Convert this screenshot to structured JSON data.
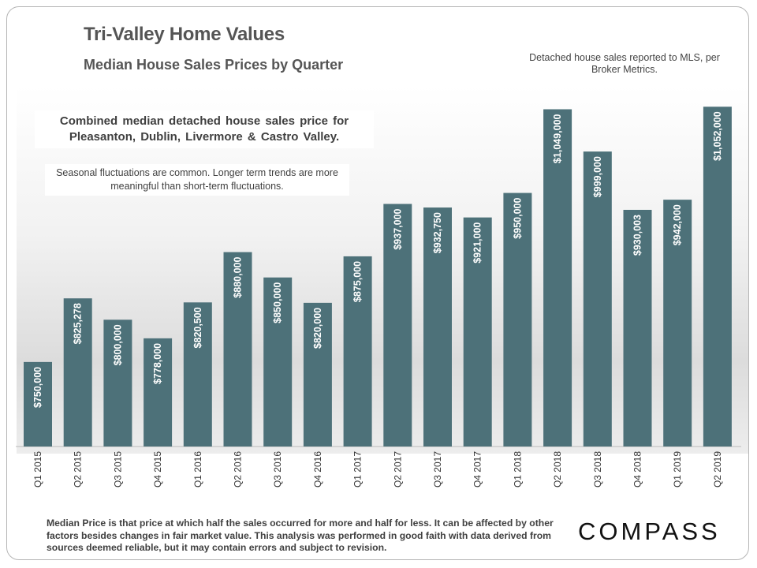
{
  "header": {
    "title": "Tri-Valley Home Values",
    "subtitle": "Median House Sales Prices by Quarter",
    "source_note": "Detached house sales reported to MLS, per Broker Metrics."
  },
  "annotations": {
    "combined_note": "Combined median detached house sales price for Pleasanton, Dublin, Livermore & Castro Valley.",
    "seasonal_note": "Seasonal fluctuations are common. Longer term trends are more meaningful than short-term fluctuations."
  },
  "footer": {
    "disclaimer": "Median Price is that price at which half the sales occurred for more and half for less. It can be affected by other factors besides changes in fair market value. This analysis was performed in good faith with data derived from sources deemed reliable, but it may contain errors and subject to revision.",
    "logo_text": "COMPASS"
  },
  "colors": {
    "bar": "#4d7179",
    "text": "#555555"
  },
  "chart_data": {
    "type": "bar",
    "categories": [
      "Q1 2015",
      "Q2 2015",
      "Q3 2015",
      "Q4 2015",
      "Q1 2016",
      "Q2 2016",
      "Q3 2016",
      "Q4 2016",
      "Q1 2017",
      "Q2 2017",
      "Q3 2017",
      "Q4 2017",
      "Q1 2018",
      "Q2 2018",
      "Q3 2018",
      "Q4 2018",
      "Q1 2019",
      "Q2 2019"
    ],
    "values": [
      750000,
      825278,
      800000,
      778000,
      820500,
      880000,
      850000,
      820000,
      875000,
      937000,
      932750,
      921000,
      950000,
      1049000,
      999000,
      930003,
      942000,
      1052000
    ],
    "value_labels": [
      "$750,000",
      "$825,278",
      "$800,000",
      "$778,000",
      "$820,500",
      "$880,000",
      "$850,000",
      "$820,000",
      "$875,000",
      "$937,000",
      "$932,750",
      "$921,000",
      "$950,000",
      "$1,049,000",
      "$999,000",
      "$930,003",
      "$942,000",
      "$1,052,000"
    ],
    "xlabel": "",
    "ylabel": "",
    "ylim": [
      650000,
      1070000
    ],
    "grid": false,
    "legend": "none"
  }
}
